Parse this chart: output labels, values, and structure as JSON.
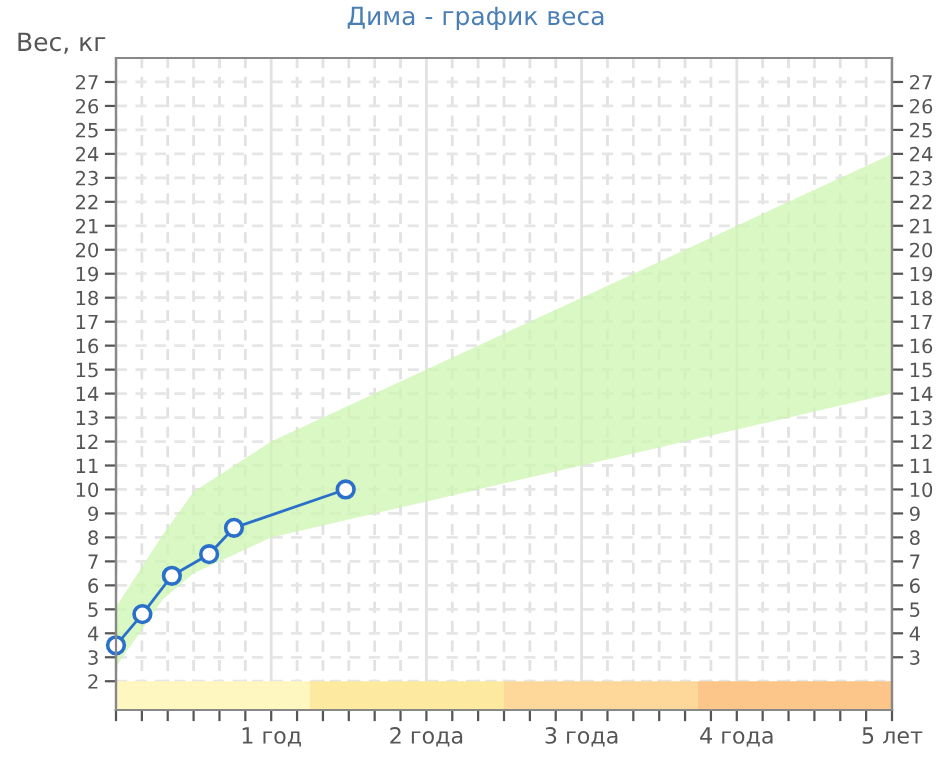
{
  "chart_data": {
    "type": "line",
    "title": "Дима - график веса",
    "ylabel": "Вес, кг",
    "xlim": [
      0,
      5
    ],
    "ylim": [
      0.8,
      28
    ],
    "xticks": [
      {
        "value": 0,
        "label": null
      },
      {
        "value": 0.1667,
        "label": null
      },
      {
        "value": 0.3333,
        "label": null
      },
      {
        "value": 0.5,
        "label": null
      },
      {
        "value": 0.6667,
        "label": null
      },
      {
        "value": 0.8333,
        "label": null
      },
      {
        "value": 1,
        "label": "1 год"
      },
      {
        "value": 1.1667,
        "label": null
      },
      {
        "value": 1.3333,
        "label": null
      },
      {
        "value": 1.5,
        "label": null
      },
      {
        "value": 1.6667,
        "label": null
      },
      {
        "value": 1.8333,
        "label": null
      },
      {
        "value": 2,
        "label": "2 года"
      },
      {
        "value": 2.1667,
        "label": null
      },
      {
        "value": 2.3333,
        "label": null
      },
      {
        "value": 2.5,
        "label": null
      },
      {
        "value": 2.6667,
        "label": null
      },
      {
        "value": 2.8333,
        "label": null
      },
      {
        "value": 3,
        "label": "3 года"
      },
      {
        "value": 3.1667,
        "label": null
      },
      {
        "value": 3.3333,
        "label": null
      },
      {
        "value": 3.5,
        "label": null
      },
      {
        "value": 3.6667,
        "label": null
      },
      {
        "value": 3.8333,
        "label": null
      },
      {
        "value": 4,
        "label": "4 года"
      },
      {
        "value": 4.1667,
        "label": null
      },
      {
        "value": 4.3333,
        "label": null
      },
      {
        "value": 4.5,
        "label": null
      },
      {
        "value": 4.6667,
        "label": null
      },
      {
        "value": 4.8333,
        "label": null
      },
      {
        "value": 5,
        "label": "5 лет"
      }
    ],
    "yticks": [
      2,
      3,
      4,
      5,
      6,
      7,
      8,
      9,
      10,
      11,
      12,
      13,
      14,
      15,
      16,
      17,
      18,
      19,
      20,
      21,
      22,
      23,
      24,
      25,
      26,
      27
    ],
    "y2lim": [
      0.8,
      28
    ],
    "y2ticks": [
      3,
      4,
      5,
      6,
      7,
      8,
      9,
      10,
      11,
      12,
      13,
      14,
      15,
      16,
      17,
      18,
      19,
      20,
      21,
      22,
      23,
      24,
      25,
      26,
      27
    ],
    "grid": true,
    "line_style": "solid",
    "series": [
      {
        "type": "line",
        "color": "#ccf5b0",
        "x": [
          0,
          0.3,
          0.5,
          1,
          2,
          3,
          4,
          5
        ],
        "values": [
          null,
          null,
          null,
          null,
          null,
          null,
          null,
          null
        ],
        "lower": [
          2.6,
          5.4,
          6.5,
          8,
          9.5,
          11,
          12.5,
          14
        ],
        "upper": [
          5.1,
          8.1,
          9.9,
          12,
          15,
          18,
          21,
          24
        ]
      },
      {
        "type": "line",
        "marker": "circle",
        "color": "#2a6fc9",
        "x": [
          0,
          0.17,
          0.36,
          0.6,
          0.76,
          1.48
        ],
        "values": [
          3.5,
          4.8,
          6.4,
          7.3,
          8.4,
          10.0
        ]
      }
    ]
  }
}
